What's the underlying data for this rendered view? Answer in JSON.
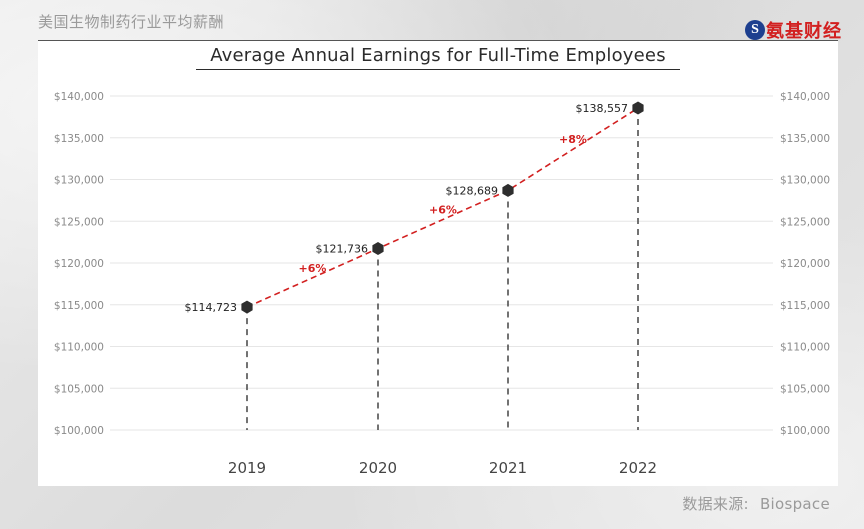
{
  "header": {
    "title": "美国生物制药行业平均薪酬",
    "logo_mark": "S",
    "logo_text": "氨基财经"
  },
  "source": {
    "label": "数据来源:",
    "value": "Biospace"
  },
  "colors": {
    "marker": "#2e2e2e",
    "trend_line": "#d22020",
    "growth_label": "#d22020",
    "drop_line": "#444444",
    "gridline": "#e6e6e6",
    "tick_text": "#8a8a8a"
  },
  "chart_data": {
    "type": "line",
    "title": "Average Annual Earnings for Full-Time Employees",
    "xlabel": "",
    "ylabel": "",
    "categories": [
      "2019",
      "2020",
      "2021",
      "2022"
    ],
    "series": [
      {
        "values": [
          114723,
          121736,
          128689,
          138557
        ],
        "data_labels": [
          "$114,723",
          "$121,736",
          "$128,689",
          "$138,557"
        ]
      }
    ],
    "growth_labels": [
      "+6%",
      "+6%",
      "+8%"
    ],
    "ylim": [
      100000,
      140000
    ],
    "yticks": [
      100000,
      105000,
      110000,
      115000,
      120000,
      125000,
      130000,
      135000,
      140000
    ],
    "ytick_labels": [
      "$100,000",
      "$105,000",
      "$110,000",
      "$115,000",
      "$120,000",
      "$125,000",
      "$130,000",
      "$135,000",
      "$140,000"
    ],
    "y_axis_both_sides": true,
    "grid": true,
    "legend": "none"
  }
}
